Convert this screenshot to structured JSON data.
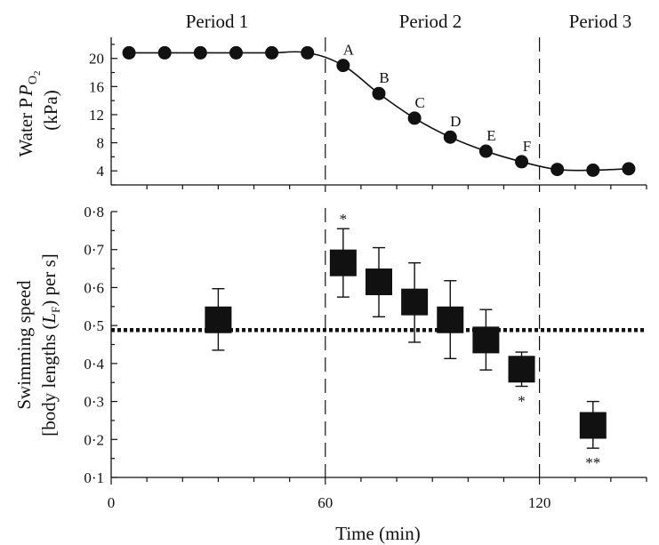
{
  "periods": [
    "Period 1",
    "Period 2",
    "Period 3"
  ],
  "colors": {
    "ink": "#111111",
    "background": "#ffffff"
  },
  "chart_data": [
    {
      "type": "line",
      "panel": "top",
      "ylabel_line1": "Water P",
      "ylabel_subscript": "O",
      "ylabel_subsubscript": "2",
      "ylabel_line2": "(kPa)",
      "xlim": [
        0,
        150
      ],
      "ylim": [
        2,
        23
      ],
      "yticks": [
        4,
        8,
        12,
        16,
        20
      ],
      "marker": "circle",
      "line": "smooth",
      "points": [
        {
          "x": 5,
          "y": 20.8,
          "label": ""
        },
        {
          "x": 15,
          "y": 20.8,
          "label": ""
        },
        {
          "x": 25,
          "y": 20.8,
          "label": ""
        },
        {
          "x": 35,
          "y": 20.8,
          "label": ""
        },
        {
          "x": 45,
          "y": 20.8,
          "label": ""
        },
        {
          "x": 55,
          "y": 20.8,
          "label": ""
        },
        {
          "x": 65,
          "y": 19.0,
          "label": "A"
        },
        {
          "x": 75,
          "y": 15.0,
          "label": "B"
        },
        {
          "x": 85,
          "y": 11.5,
          "label": "C"
        },
        {
          "x": 95,
          "y": 8.8,
          "label": "D"
        },
        {
          "x": 105,
          "y": 6.8,
          "label": "E"
        },
        {
          "x": 115,
          "y": 5.3,
          "label": "F"
        },
        {
          "x": 125,
          "y": 4.2,
          "label": ""
        },
        {
          "x": 135,
          "y": 4.1,
          "label": ""
        },
        {
          "x": 145,
          "y": 4.3,
          "label": ""
        }
      ]
    },
    {
      "type": "scatter",
      "panel": "bottom",
      "ylabel_line1": "Swimming speed",
      "ylabel_line2_prefix": "[body lengths (",
      "ylabel_line2_var": "L",
      "ylabel_line2_sub": "F",
      "ylabel_line2_suffix": ") per s]",
      "xlabel": "Time (min)",
      "xlim": [
        0,
        150
      ],
      "xticks": [
        0,
        60,
        120
      ],
      "xtick_labels": [
        "0",
        "60",
        "120"
      ],
      "ylim": [
        0.1,
        0.8
      ],
      "yticks": [
        0.1,
        0.2,
        0.3,
        0.4,
        0.5,
        0.6,
        0.7,
        0.8
      ],
      "ytick_labels": [
        "0·1",
        "0·2",
        "0·3",
        "0·4",
        "0·5",
        "0·6",
        "0·7",
        "0·8"
      ],
      "marker": "square",
      "reference_line": 0.488,
      "points": [
        {
          "x": 30,
          "y": 0.515,
          "err_low": 0.435,
          "err_high": 0.597,
          "sig": "",
          "sig_pos": ""
        },
        {
          "x": 65,
          "y": 0.665,
          "err_low": 0.575,
          "err_high": 0.755,
          "sig": "*",
          "sig_pos": "above"
        },
        {
          "x": 75,
          "y": 0.615,
          "err_low": 0.523,
          "err_high": 0.705,
          "sig": "",
          "sig_pos": ""
        },
        {
          "x": 85,
          "y": 0.562,
          "err_low": 0.456,
          "err_high": 0.665,
          "sig": "",
          "sig_pos": ""
        },
        {
          "x": 95,
          "y": 0.515,
          "err_low": 0.413,
          "err_high": 0.618,
          "sig": "",
          "sig_pos": ""
        },
        {
          "x": 105,
          "y": 0.462,
          "err_low": 0.383,
          "err_high": 0.542,
          "sig": "",
          "sig_pos": ""
        },
        {
          "x": 115,
          "y": 0.385,
          "err_low": 0.34,
          "err_high": 0.43,
          "sig": "*",
          "sig_pos": "below"
        },
        {
          "x": 135,
          "y": 0.237,
          "err_low": 0.177,
          "err_high": 0.3,
          "sig": "**",
          "sig_pos": "below"
        }
      ]
    }
  ]
}
